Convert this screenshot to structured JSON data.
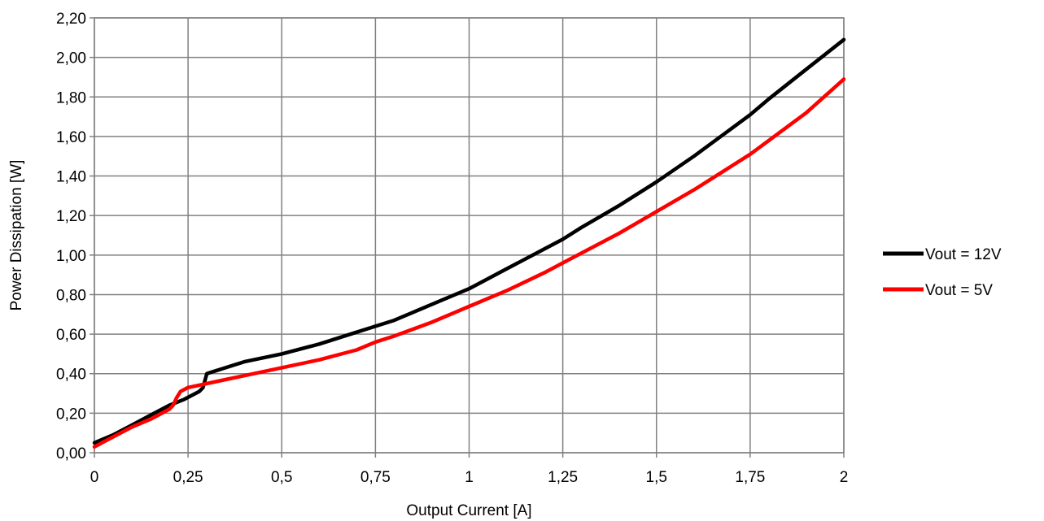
{
  "chart_data": {
    "type": "line",
    "title": "",
    "xlabel": "Output Current [A]",
    "ylabel": "Power Dissipation [W]",
    "xlim": [
      0,
      2
    ],
    "ylim": [
      0,
      2.2
    ],
    "grid": true,
    "legend_position": "right",
    "x_tick_labels": [
      "0",
      "0,25",
      "0,5",
      "0,75",
      "1",
      "1,25",
      "1,5",
      "1,75",
      "2"
    ],
    "y_tick_labels": [
      "0,00",
      "0,20",
      "0,40",
      "0,60",
      "0,80",
      "1,00",
      "1,20",
      "1,40",
      "1,60",
      "1,80",
      "2,00",
      "2,20"
    ],
    "series": [
      {
        "name": "Vout = 12V",
        "color": "#000000",
        "x": [
          0,
          0.05,
          0.1,
          0.15,
          0.2,
          0.24,
          0.28,
          0.29,
          0.3,
          0.35,
          0.4,
          0.5,
          0.6,
          0.7,
          0.75,
          0.8,
          0.9,
          1.0,
          1.1,
          1.2,
          1.25,
          1.3,
          1.4,
          1.5,
          1.6,
          1.7,
          1.75,
          1.8,
          1.9,
          2.0
        ],
        "y": [
          0.05,
          0.09,
          0.14,
          0.19,
          0.24,
          0.27,
          0.31,
          0.33,
          0.4,
          0.43,
          0.46,
          0.5,
          0.55,
          0.61,
          0.64,
          0.67,
          0.75,
          0.83,
          0.93,
          1.03,
          1.08,
          1.14,
          1.25,
          1.37,
          1.5,
          1.64,
          1.71,
          1.79,
          1.94,
          2.09
        ]
      },
      {
        "name": "Vout = 5V",
        "color": "#ff0000",
        "x": [
          0,
          0.05,
          0.1,
          0.15,
          0.2,
          0.21,
          0.22,
          0.23,
          0.25,
          0.3,
          0.35,
          0.4,
          0.5,
          0.6,
          0.7,
          0.75,
          0.8,
          0.9,
          1.0,
          1.1,
          1.2,
          1.25,
          1.3,
          1.4,
          1.5,
          1.6,
          1.7,
          1.75,
          1.8,
          1.9,
          2.0
        ],
        "y": [
          0.03,
          0.08,
          0.13,
          0.17,
          0.22,
          0.24,
          0.28,
          0.31,
          0.33,
          0.35,
          0.37,
          0.39,
          0.43,
          0.47,
          0.52,
          0.56,
          0.59,
          0.66,
          0.74,
          0.82,
          0.91,
          0.96,
          1.01,
          1.11,
          1.22,
          1.33,
          1.45,
          1.51,
          1.58,
          1.72,
          1.89
        ]
      }
    ]
  }
}
